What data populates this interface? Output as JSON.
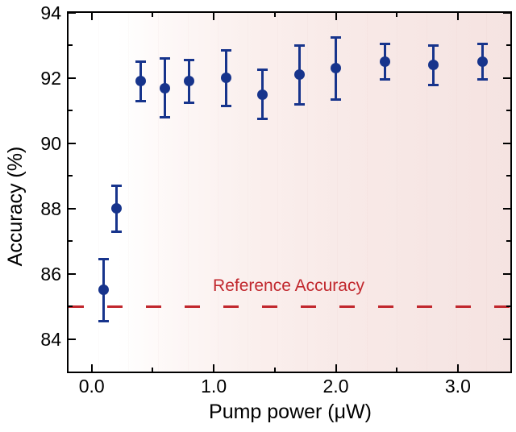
{
  "figure": {
    "kind": "scatter-plot-with-error-bars",
    "frame_color": "#000000",
    "background_left": "#ffffff",
    "background_right": "#f5e3e1"
  },
  "chart_data": {
    "type": "scatter",
    "title": "",
    "xlabel": "Pump power (μW)",
    "ylabel": "Accuracy (%)",
    "xlim": [
      -0.19,
      3.43
    ],
    "ylim": [
      83,
      94
    ],
    "grid": false,
    "legend": "none",
    "x_major_ticks": [
      0,
      1,
      2,
      3
    ],
    "x_major_tick_labels": [
      "0.0",
      "1.0",
      "2.0",
      "3.0"
    ],
    "x_minor_ticks": [
      0.5,
      1.5,
      2.5
    ],
    "y_major_ticks": [
      84,
      86,
      88,
      90,
      92,
      94
    ],
    "y_major_tick_labels": [
      "84",
      "86",
      "88",
      "90",
      "92",
      "94"
    ],
    "y_minor_ticks": [
      85,
      87,
      89,
      91,
      93
    ],
    "series": [
      {
        "name": "accuracy-vs-pump-power",
        "marker": "circle",
        "marker_color": "#17348c",
        "points": [
          {
            "x": 0.1,
            "y": 85.5,
            "err": 0.95
          },
          {
            "x": 0.2,
            "y": 88.0,
            "err": 0.7
          },
          {
            "x": 0.4,
            "y": 91.9,
            "err": 0.6
          },
          {
            "x": 0.6,
            "y": 91.7,
            "err": 0.9
          },
          {
            "x": 0.8,
            "y": 91.9,
            "err": 0.65
          },
          {
            "x": 1.1,
            "y": 92.0,
            "err": 0.85
          },
          {
            "x": 1.4,
            "y": 91.5,
            "err": 0.75
          },
          {
            "x": 1.7,
            "y": 92.1,
            "err": 0.9
          },
          {
            "x": 2.0,
            "y": 92.3,
            "err": 0.95
          },
          {
            "x": 2.4,
            "y": 92.5,
            "err": 0.55
          },
          {
            "x": 2.8,
            "y": 92.4,
            "err": 0.6
          },
          {
            "x": 3.2,
            "y": 92.5,
            "err": 0.55
          }
        ]
      }
    ],
    "reference_line": {
      "value": 85,
      "label": "Reference Accuracy",
      "color": "#c1272d",
      "style": "dashed"
    }
  }
}
